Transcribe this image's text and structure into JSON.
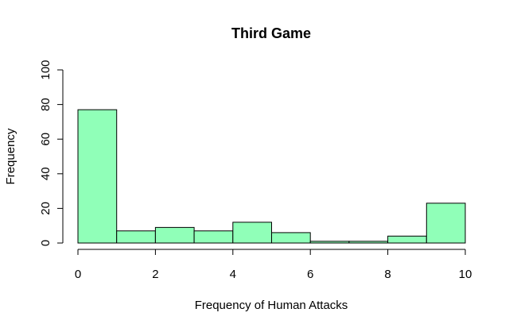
{
  "chart_data": {
    "type": "bar",
    "subtype": "histogram",
    "title": "Third Game",
    "xlabel": "Frequency of Human Attacks",
    "ylabel": "Frequency",
    "bins": [
      {
        "from": 0,
        "to": 1,
        "count": 77
      },
      {
        "from": 1,
        "to": 2,
        "count": 7
      },
      {
        "from": 2,
        "to": 3,
        "count": 9
      },
      {
        "from": 3,
        "to": 4,
        "count": 7
      },
      {
        "from": 4,
        "to": 5,
        "count": 12
      },
      {
        "from": 5,
        "to": 6,
        "count": 6
      },
      {
        "from": 6,
        "to": 7,
        "count": 1
      },
      {
        "from": 7,
        "to": 8,
        "count": 1
      },
      {
        "from": 8,
        "to": 9,
        "count": 4
      },
      {
        "from": 9,
        "to": 10,
        "count": 23
      }
    ],
    "xlim": [
      0,
      10
    ],
    "ylim": [
      0,
      100
    ],
    "xticks": [
      "0",
      "2",
      "4",
      "6",
      "8",
      "10"
    ],
    "yticks": [
      "0",
      "20",
      "40",
      "60",
      "80",
      "100"
    ],
    "grid": false,
    "colors": {
      "bar_fill": "#90ffb8",
      "bar_stroke": "#000000",
      "axis": "#000000"
    }
  }
}
